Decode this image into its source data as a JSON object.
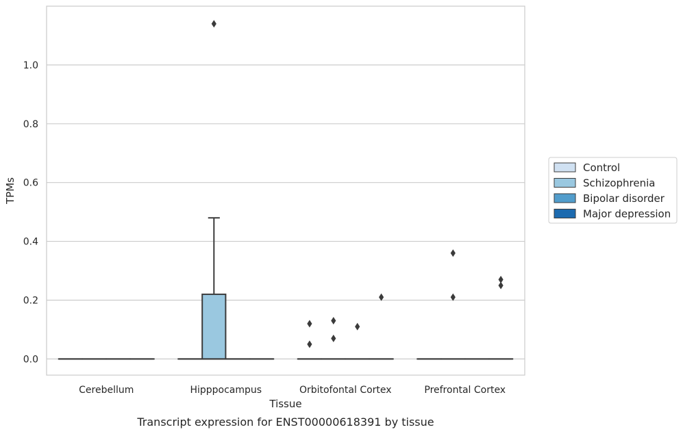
{
  "caption": "Transcript expression for ENST00000618391 by tissue",
  "chart_data": {
    "type": "box",
    "title": "",
    "xlabel": "Tissue",
    "ylabel": "TPMs",
    "ylim": [
      -0.055,
      1.2
    ],
    "yticks": [
      0.0,
      0.2,
      0.4,
      0.6,
      0.8,
      1.0
    ],
    "ytick_labels": [
      "0.0",
      "0.2",
      "0.4",
      "0.6",
      "0.8",
      "1.0"
    ],
    "grid": "horizontal",
    "legend_position": "right",
    "categories": [
      "Cerebellum",
      "Hipppocampus",
      "Orbitofontal Cortex",
      "Prefrontal Cortex"
    ],
    "series": [
      {
        "name": "Control",
        "color": "#d0e1f2",
        "boxes": [
          {
            "category": "Cerebellum",
            "q1": 0,
            "median": 0,
            "q3": 0,
            "whisker_low": 0,
            "whisker_high": 0,
            "outliers": []
          },
          {
            "category": "Hipppocampus",
            "q1": 0,
            "median": 0,
            "q3": 0,
            "whisker_low": 0,
            "whisker_high": 0,
            "outliers": []
          },
          {
            "category": "Orbitofontal Cortex",
            "q1": 0,
            "median": 0,
            "q3": 0,
            "whisker_low": 0,
            "whisker_high": 0,
            "outliers": [
              0.12,
              0.05
            ]
          },
          {
            "category": "Prefrontal Cortex",
            "q1": 0,
            "median": 0,
            "q3": 0,
            "whisker_low": 0,
            "whisker_high": 0,
            "outliers": []
          }
        ]
      },
      {
        "name": "Schizophrenia",
        "color": "#9ac8e0",
        "boxes": [
          {
            "category": "Cerebellum",
            "q1": 0,
            "median": 0,
            "q3": 0,
            "whisker_low": 0,
            "whisker_high": 0,
            "outliers": []
          },
          {
            "category": "Hipppocampus",
            "q1": 0,
            "median": 0,
            "q3": 0.22,
            "whisker_low": 0,
            "whisker_high": 0.48,
            "outliers": [
              1.14
            ]
          },
          {
            "category": "Orbitofontal Cortex",
            "q1": 0,
            "median": 0,
            "q3": 0,
            "whisker_low": 0,
            "whisker_high": 0,
            "outliers": [
              0.13,
              0.07
            ]
          },
          {
            "category": "Prefrontal Cortex",
            "q1": 0,
            "median": 0,
            "q3": 0,
            "whisker_low": 0,
            "whisker_high": 0,
            "outliers": [
              0.36,
              0.21
            ]
          }
        ]
      },
      {
        "name": "Bipolar disorder",
        "color": "#529dcc",
        "boxes": [
          {
            "category": "Cerebellum",
            "q1": 0,
            "median": 0,
            "q3": 0,
            "whisker_low": 0,
            "whisker_high": 0,
            "outliers": []
          },
          {
            "category": "Hipppocampus",
            "q1": 0,
            "median": 0,
            "q3": 0,
            "whisker_low": 0,
            "whisker_high": 0,
            "outliers": []
          },
          {
            "category": "Orbitofontal Cortex",
            "q1": 0,
            "median": 0,
            "q3": 0,
            "whisker_low": 0,
            "whisker_high": 0,
            "outliers": [
              0.11
            ]
          },
          {
            "category": "Prefrontal Cortex",
            "q1": 0,
            "median": 0,
            "q3": 0,
            "whisker_low": 0,
            "whisker_high": 0,
            "outliers": []
          }
        ]
      },
      {
        "name": "Major depression",
        "color": "#1c6aaf",
        "boxes": [
          {
            "category": "Cerebellum",
            "q1": 0,
            "median": 0,
            "q3": 0,
            "whisker_low": 0,
            "whisker_high": 0,
            "outliers": []
          },
          {
            "category": "Hipppocampus",
            "q1": 0,
            "median": 0,
            "q3": 0,
            "whisker_low": 0,
            "whisker_high": 0,
            "outliers": []
          },
          {
            "category": "Orbitofontal Cortex",
            "q1": 0,
            "median": 0,
            "q3": 0,
            "whisker_low": 0,
            "whisker_high": 0,
            "outliers": [
              0.21
            ]
          },
          {
            "category": "Prefrontal Cortex",
            "q1": 0,
            "median": 0,
            "q3": 0,
            "whisker_low": 0,
            "whisker_high": 0,
            "outliers": [
              0.27,
              0.25
            ]
          }
        ]
      }
    ]
  }
}
